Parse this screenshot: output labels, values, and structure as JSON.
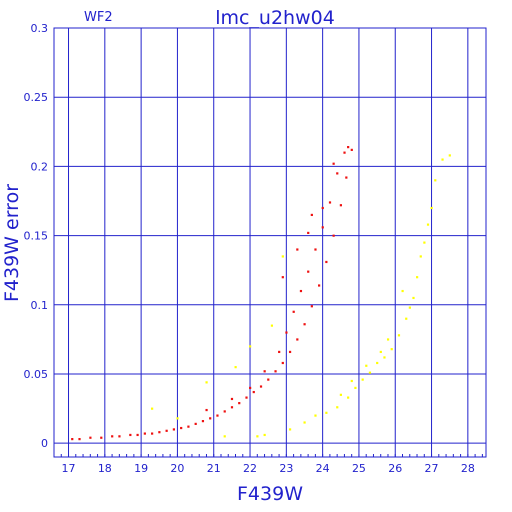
{
  "chart_data": {
    "type": "scatter",
    "title": "lmc_u2hw04",
    "subtitle": "WF2",
    "xlabel": "F439W",
    "ylabel": "F439W error",
    "xlim": [
      16.6,
      28.5
    ],
    "ylim": [
      -0.01,
      0.3
    ],
    "xticks": [
      "17",
      "18",
      "19",
      "20",
      "21",
      "22",
      "23",
      "24",
      "25",
      "26",
      "27",
      "28"
    ],
    "yticks": [
      "0",
      "0.05",
      "0.1",
      "0.15",
      "0.2",
      "0.25",
      "0.3"
    ],
    "grid": true,
    "series": [
      {
        "color": "#ee1111",
        "points": [
          [
            17.1,
            0.003
          ],
          [
            17.3,
            0.003
          ],
          [
            17.6,
            0.004
          ],
          [
            17.9,
            0.004
          ],
          [
            18.2,
            0.005
          ],
          [
            18.4,
            0.005
          ],
          [
            18.7,
            0.006
          ],
          [
            18.9,
            0.006
          ],
          [
            19.1,
            0.007
          ],
          [
            19.3,
            0.007
          ],
          [
            19.5,
            0.008
          ],
          [
            19.7,
            0.009
          ],
          [
            19.9,
            0.01
          ],
          [
            20.1,
            0.011
          ],
          [
            20.3,
            0.012
          ],
          [
            20.5,
            0.014
          ],
          [
            20.7,
            0.016
          ],
          [
            20.9,
            0.018
          ],
          [
            21.1,
            0.02
          ],
          [
            21.3,
            0.023
          ],
          [
            21.5,
            0.026
          ],
          [
            21.7,
            0.029
          ],
          [
            21.9,
            0.033
          ],
          [
            22.1,
            0.037
          ],
          [
            22.3,
            0.041
          ],
          [
            22.5,
            0.046
          ],
          [
            22.7,
            0.052
          ],
          [
            22.9,
            0.058
          ],
          [
            23.1,
            0.066
          ],
          [
            23.3,
            0.075
          ],
          [
            23.5,
            0.086
          ],
          [
            23.7,
            0.099
          ],
          [
            23.9,
            0.114
          ],
          [
            24.1,
            0.131
          ],
          [
            24.3,
            0.15
          ],
          [
            24.5,
            0.172
          ],
          [
            24.65,
            0.192
          ],
          [
            24.8,
            0.212
          ],
          [
            20.8,
            0.024
          ],
          [
            21.5,
            0.032
          ],
          [
            22.0,
            0.04
          ],
          [
            22.4,
            0.052
          ],
          [
            22.8,
            0.066
          ],
          [
            23.0,
            0.08
          ],
          [
            23.2,
            0.095
          ],
          [
            23.4,
            0.11
          ],
          [
            23.6,
            0.124
          ],
          [
            23.8,
            0.14
          ],
          [
            24.0,
            0.156
          ],
          [
            24.2,
            0.174
          ],
          [
            24.4,
            0.195
          ],
          [
            24.6,
            0.21
          ],
          [
            24.7,
            0.214
          ],
          [
            23.3,
            0.14
          ],
          [
            23.6,
            0.152
          ],
          [
            24.0,
            0.17
          ],
          [
            24.3,
            0.202
          ],
          [
            22.9,
            0.12
          ],
          [
            23.7,
            0.165
          ]
        ]
      },
      {
        "color": "#ffff00",
        "points": [
          [
            20.0,
            0.018
          ],
          [
            20.8,
            0.044
          ],
          [
            21.6,
            0.055
          ],
          [
            22.0,
            0.07
          ],
          [
            22.2,
            0.005
          ],
          [
            22.6,
            0.085
          ],
          [
            22.9,
            0.135
          ],
          [
            23.1,
            0.01
          ],
          [
            23.5,
            0.015
          ],
          [
            23.8,
            0.02
          ],
          [
            24.1,
            0.022
          ],
          [
            24.4,
            0.026
          ],
          [
            24.7,
            0.033
          ],
          [
            24.9,
            0.04
          ],
          [
            25.1,
            0.046
          ],
          [
            25.3,
            0.051
          ],
          [
            25.5,
            0.058
          ],
          [
            25.7,
            0.062
          ],
          [
            25.9,
            0.068
          ],
          [
            26.1,
            0.078
          ],
          [
            26.3,
            0.09
          ],
          [
            26.5,
            0.105
          ],
          [
            26.6,
            0.12
          ],
          [
            26.7,
            0.135
          ],
          [
            26.8,
            0.145
          ],
          [
            26.9,
            0.158
          ],
          [
            27.0,
            0.17
          ],
          [
            27.1,
            0.19
          ],
          [
            27.3,
            0.205
          ],
          [
            27.5,
            0.208
          ],
          [
            26.2,
            0.11
          ],
          [
            26.4,
            0.098
          ],
          [
            25.8,
            0.075
          ],
          [
            25.6,
            0.066
          ],
          [
            25.2,
            0.056
          ],
          [
            24.8,
            0.045
          ],
          [
            24.5,
            0.035
          ],
          [
            21.3,
            0.005
          ],
          [
            22.4,
            0.006
          ],
          [
            19.3,
            0.025
          ]
        ]
      }
    ]
  }
}
